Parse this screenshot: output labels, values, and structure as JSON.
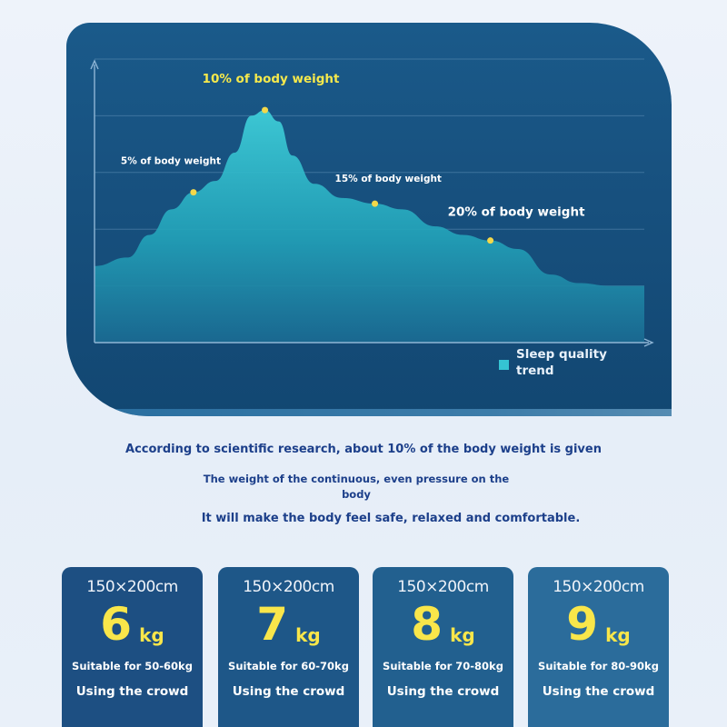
{
  "chart_data": {
    "type": "area",
    "series": [
      {
        "name": "Sleep quality trend",
        "color": "#35c4d3"
      }
    ],
    "grid": true,
    "axes": {
      "x_arrow": true,
      "y_arrow": true
    },
    "legend_position": "bottom-right",
    "annotations": [
      {
        "label": "5% of body weight",
        "x": 0.18,
        "y": 0.53
      },
      {
        "label": "10% of body weight",
        "x": 0.31,
        "y": 0.82
      },
      {
        "label": "15% of body weight",
        "x": 0.51,
        "y": 0.49
      },
      {
        "label": "20% of body weight",
        "x": 0.72,
        "y": 0.36
      }
    ]
  },
  "legend": {
    "label": "Sleep quality trend"
  },
  "description": {
    "line1": "According to scientific research, about 10% of the body weight is given",
    "line2": "The weight of the continuous, even pressure on the body",
    "line3": "It will make the body feel safe, relaxed and comfortable."
  },
  "cards": [
    {
      "size": "150×200cm",
      "weight": "6",
      "unit": "kg",
      "suitable": "Suitable for 50-60kg",
      "crowd": "Using the crowd",
      "color": "#1d4f82"
    },
    {
      "size": "150×200cm",
      "weight": "7",
      "unit": "kg",
      "suitable": "Suitable for 60-70kg",
      "crowd": "Using the crowd",
      "color": "#1e5788"
    },
    {
      "size": "150×200cm",
      "weight": "8",
      "unit": "kg",
      "suitable": "Suitable for 70-80kg",
      "crowd": "Using the crowd",
      "color": "#22608f"
    },
    {
      "size": "150×200cm",
      "weight": "9",
      "unit": "kg",
      "suitable": "Suitable for 80-90kg",
      "crowd": "Using the crowd",
      "color": "#2b6c9b"
    }
  ]
}
